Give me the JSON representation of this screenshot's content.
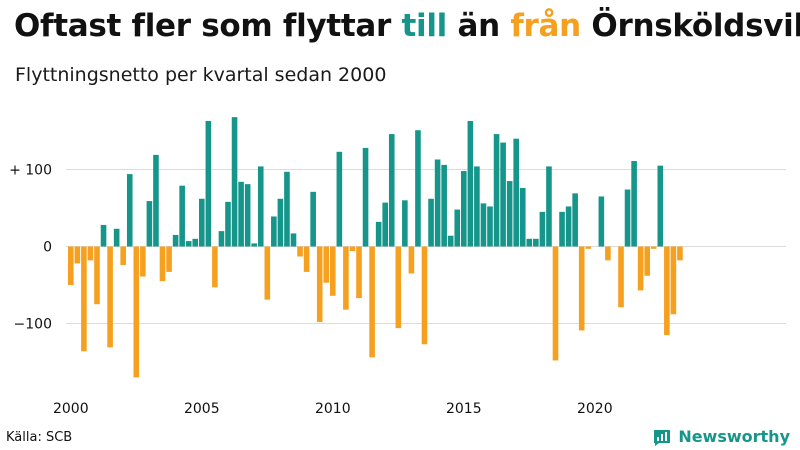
{
  "title": {
    "part1": "Oftast fler som flyttar ",
    "part2": "till",
    "part3": " än ",
    "part4": "från",
    "part5": " Örnsköldsvik"
  },
  "subtitle": "Flyttningsnetto per kvartal sedan 2000",
  "source": "Källa: SCB",
  "brand": {
    "name": "Newsworthy",
    "icon": "newsworthy-logo-icon"
  },
  "colors": {
    "positive": "#16968a",
    "negative": "#f5a01f",
    "grid": "#dcdcdc"
  },
  "chart_data": {
    "type": "bar",
    "title": "Oftast fler som flyttar till än från Örnsköldsvik",
    "subtitle": "Flyttningsnetto per kvartal sedan 2000",
    "xlabel": "",
    "ylabel": "",
    "ylim": [
      -172,
      172
    ],
    "yticks": [
      {
        "value": 100,
        "label": "+ 100"
      },
      {
        "value": 0,
        "label": "0"
      },
      {
        "value": -100,
        "label": "−100"
      }
    ],
    "xticks": [
      {
        "year": 2000,
        "label": "2000"
      },
      {
        "year": 2005,
        "label": "2005"
      },
      {
        "year": 2010,
        "label": "2010"
      },
      {
        "year": 2015,
        "label": "2015"
      },
      {
        "year": 2020,
        "label": "2020"
      }
    ],
    "grid": true,
    "start_year": 2000,
    "start_quarter": 1,
    "values": [
      -50,
      -22,
      -136,
      -18,
      -75,
      28,
      -131,
      23,
      -24,
      94,
      -170,
      -39,
      59,
      119,
      -45,
      -33,
      15,
      79,
      7,
      10,
      62,
      163,
      -53,
      20,
      58,
      168,
      84,
      81,
      4,
      104,
      -69,
      39,
      62,
      97,
      17,
      -13,
      -33,
      71,
      -98,
      -47,
      -64,
      123,
      -82,
      -6,
      -67,
      128,
      -144,
      32,
      57,
      146,
      -106,
      60,
      -35,
      151,
      -127,
      62,
      113,
      106,
      14,
      48,
      98,
      163,
      104,
      56,
      52,
      146,
      135,
      85,
      140,
      76,
      10,
      10,
      45,
      104,
      -148,
      45,
      52,
      69,
      -109,
      -3,
      0,
      65,
      -18,
      0,
      -79,
      74,
      111,
      -57,
      -38,
      -3,
      105,
      -115,
      -88,
      -18
    ]
  }
}
